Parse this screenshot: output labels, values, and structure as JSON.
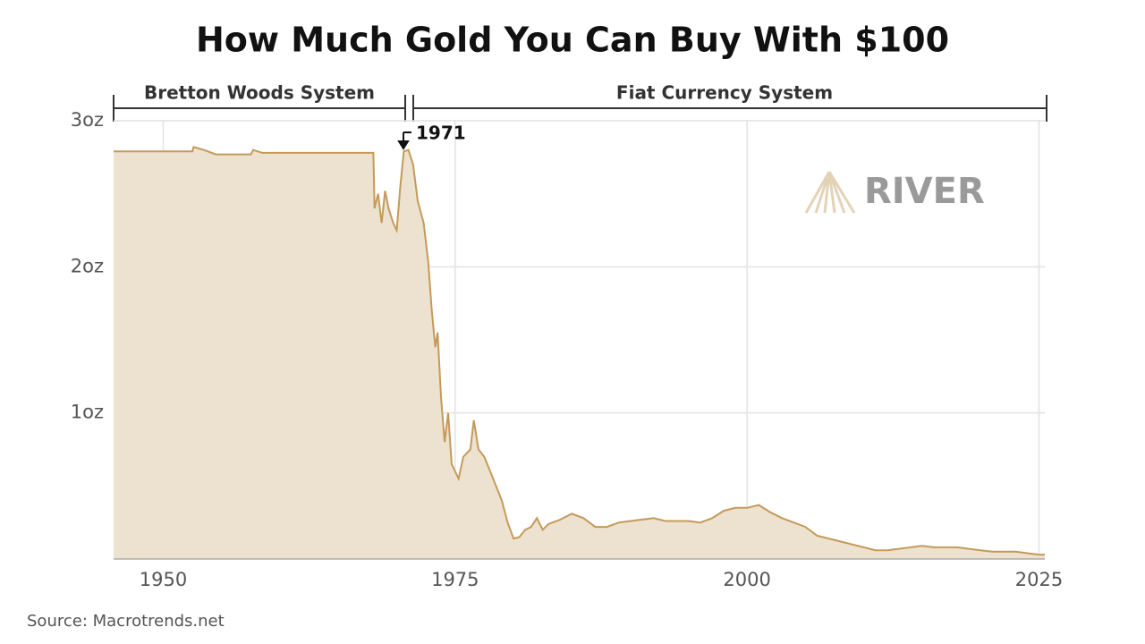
{
  "chart_data": {
    "type": "area",
    "title": "How Much Gold You Can Buy With $100",
    "periods": [
      "Bretton Woods System",
      "Fiat Currency System"
    ],
    "annotation": "1971",
    "watermark": "RIVER",
    "source": "Source: Macrotrends.net",
    "color": "#c49a5a",
    "fill": "#ede2cf",
    "grid": true,
    "xlim": [
      1945.75,
      2025.5
    ],
    "xticks": [
      1950,
      1975,
      2000,
      2025
    ],
    "ylim": [
      0,
      3
    ],
    "yticks": [
      {
        "value": 1,
        "label": "1oz"
      },
      {
        "value": 2,
        "label": "2oz"
      },
      {
        "value": 3,
        "label": "3oz"
      }
    ],
    "x": [
      1945.75,
      1952.5,
      1952.6,
      1953.5,
      1954.5,
      1957.5,
      1957.7,
      1958.5,
      1968,
      1968.1,
      1968.4,
      1968.7,
      1969,
      1969.3,
      1969.7,
      1970,
      1970.3,
      1970.6,
      1971,
      1971.4,
      1971.8,
      1972.3,
      1972.7,
      1973,
      1973.3,
      1973.5,
      1973.8,
      1974.1,
      1974.4,
      1974.7,
      1975,
      1975.3,
      1975.7,
      1976.3,
      1976.6,
      1977,
      1977.5,
      1978,
      1978.5,
      1979,
      1979.5,
      1980,
      1980.5,
      1981,
      1981.5,
      1982,
      1982.5,
      1983,
      1984,
      1985,
      1986,
      1987,
      1988,
      1989,
      1990,
      1991,
      1992,
      1993,
      1994,
      1995,
      1996,
      1997,
      1998,
      1999,
      2000,
      2001,
      2002,
      2003,
      2004,
      2005,
      2006,
      2007,
      2008,
      2009,
      2010,
      2011,
      2012,
      2013,
      2014,
      2015,
      2016,
      2017,
      2018,
      2019,
      2020,
      2021,
      2022,
      2023,
      2024,
      2025,
      2025.5
    ],
    "values": [
      2.79,
      2.79,
      2.82,
      2.8,
      2.77,
      2.77,
      2.8,
      2.78,
      2.78,
      2.4,
      2.5,
      2.3,
      2.52,
      2.4,
      2.3,
      2.25,
      2.55,
      2.79,
      2.8,
      2.7,
      2.45,
      2.3,
      2.03,
      1.7,
      1.45,
      1.55,
      1.1,
      0.8,
      1.0,
      0.65,
      0.6,
      0.55,
      0.7,
      0.75,
      0.95,
      0.75,
      0.7,
      0.6,
      0.5,
      0.4,
      0.25,
      0.14,
      0.15,
      0.2,
      0.22,
      0.28,
      0.2,
      0.24,
      0.27,
      0.31,
      0.28,
      0.22,
      0.22,
      0.25,
      0.26,
      0.27,
      0.28,
      0.26,
      0.26,
      0.26,
      0.25,
      0.28,
      0.33,
      0.35,
      0.35,
      0.37,
      0.32,
      0.28,
      0.25,
      0.22,
      0.16,
      0.14,
      0.12,
      0.1,
      0.08,
      0.06,
      0.06,
      0.07,
      0.08,
      0.09,
      0.08,
      0.08,
      0.08,
      0.07,
      0.06,
      0.05,
      0.05,
      0.05,
      0.04,
      0.03,
      0.03
    ]
  }
}
